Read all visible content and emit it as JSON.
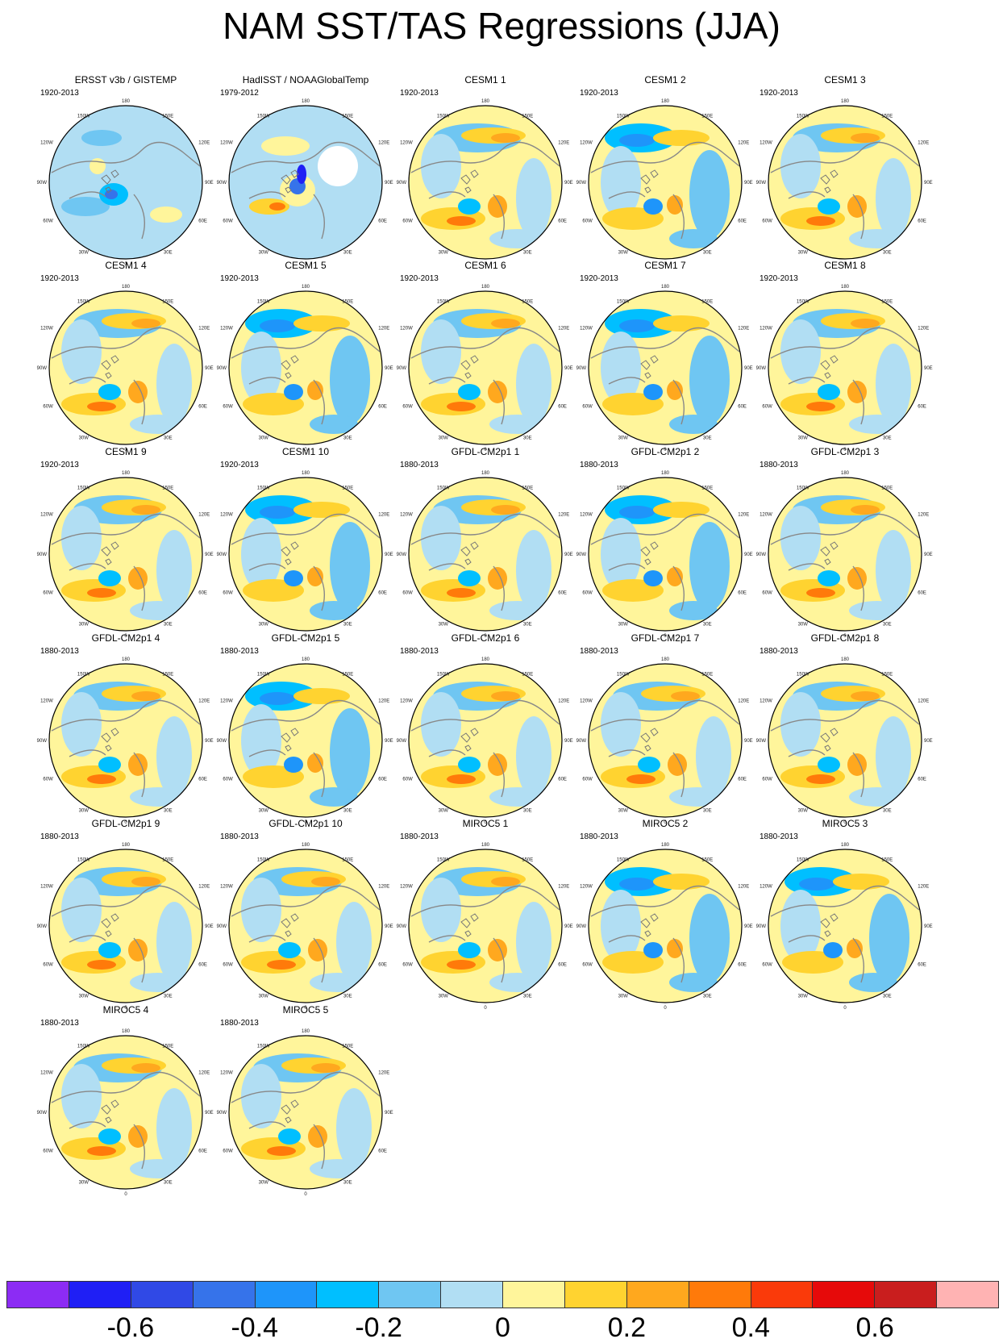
{
  "title": "NAM SST/TAS Regressions (JJA)",
  "map_labels": {
    "top": "180",
    "top_left": "150W",
    "top_right": "150E",
    "upper_left": "120W",
    "upper_right": "120E",
    "left": "90W",
    "right": "90E",
    "lower_left": "60W",
    "lower_right": "60E",
    "bottom_left": "30W",
    "bottom_right": "30E",
    "bottom": "0"
  },
  "panels": [
    {
      "title": "ERSST v3b / GISTEMP",
      "period": "1920-2013",
      "style": "obs"
    },
    {
      "title": "HadISST / NOAAGlobalTemp",
      "period": "1979-2012",
      "style": "obs2"
    },
    {
      "title": "CESM1 1",
      "period": "1920-2013",
      "style": "warm"
    },
    {
      "title": "CESM1 2",
      "period": "1920-2013",
      "style": "cool"
    },
    {
      "title": "CESM1 3",
      "period": "1920-2013",
      "style": "warm"
    },
    {
      "title": "CESM1 4",
      "period": "1920-2013",
      "style": "warm"
    },
    {
      "title": "CESM1 5",
      "period": "1920-2013",
      "style": "cool"
    },
    {
      "title": "CESM1 6",
      "period": "1920-2013",
      "style": "warm"
    },
    {
      "title": "CESM1 7",
      "period": "1920-2013",
      "style": "cool"
    },
    {
      "title": "CESM1 8",
      "period": "1920-2013",
      "style": "warm"
    },
    {
      "title": "CESM1 9",
      "period": "1920-2013",
      "style": "warm"
    },
    {
      "title": "CESM1 10",
      "period": "1920-2013",
      "style": "cool"
    },
    {
      "title": "GFDL-CM2p1 1",
      "period": "1880-2013",
      "style": "warm"
    },
    {
      "title": "GFDL-CM2p1 2",
      "period": "1880-2013",
      "style": "cool"
    },
    {
      "title": "GFDL-CM2p1 3",
      "period": "1880-2013",
      "style": "warm"
    },
    {
      "title": "GFDL-CM2p1 4",
      "period": "1880-2013",
      "style": "warm"
    },
    {
      "title": "GFDL-CM2p1 5",
      "period": "1880-2013",
      "style": "cool"
    },
    {
      "title": "GFDL-CM2p1 6",
      "period": "1880-2013",
      "style": "warm"
    },
    {
      "title": "GFDL-CM2p1 7",
      "period": "1880-2013",
      "style": "warm"
    },
    {
      "title": "GFDL-CM2p1 8",
      "period": "1880-2013",
      "style": "warm"
    },
    {
      "title": "GFDL-CM2p1 9",
      "period": "1880-2013",
      "style": "warm"
    },
    {
      "title": "GFDL-CM2p1 10",
      "period": "1880-2013",
      "style": "warm"
    },
    {
      "title": "MIROC5 1",
      "period": "1880-2013",
      "style": "warm"
    },
    {
      "title": "MIROC5 2",
      "period": "1880-2013",
      "style": "cool"
    },
    {
      "title": "MIROC5 3",
      "period": "1880-2013",
      "style": "cool"
    },
    {
      "title": "MIROC5 4",
      "period": "1880-2013",
      "style": "warm"
    },
    {
      "title": "MIROC5 5",
      "period": "1880-2013",
      "style": "warm"
    }
  ],
  "colorbar": {
    "colors": [
      "#8c2cf4",
      "#1f1ff5",
      "#3049e6",
      "#3673ea",
      "#1e95fa",
      "#00bfff",
      "#6fc6f2",
      "#b1def3",
      "#fff59b",
      "#ffd330",
      "#ffa81e",
      "#ff7a0a",
      "#fa3a0a",
      "#e60a0a",
      "#c91e1e",
      "#ffb3b3"
    ],
    "tick_labels": [
      "-0.6",
      "-0.4",
      "-0.2",
      "0",
      "0.2",
      "0.4",
      "0.6"
    ]
  }
}
